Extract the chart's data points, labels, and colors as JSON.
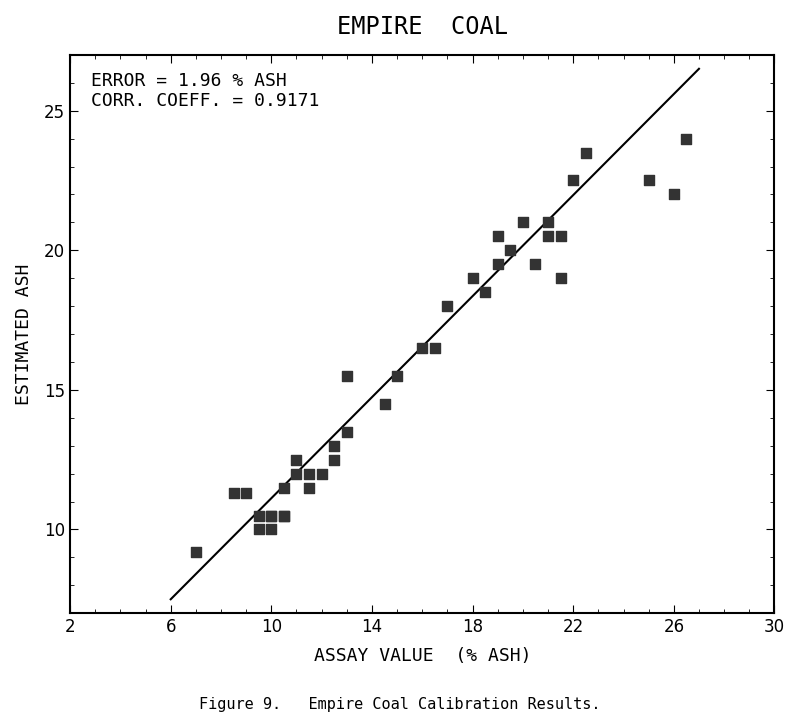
{
  "title": "EMPIRE  COAL",
  "xlabel": "ASSAY VALUE  (% ASH)",
  "ylabel": "ESTIMATED ASH",
  "caption": "Figure 9.   Empire Coal Calibration Results.",
  "annotation_line1": "ERROR = 1.96 % ASH",
  "annotation_line2": "CORR. COEFF. = 0.9171",
  "xlim": [
    2,
    30
  ],
  "ylim": [
    7,
    27
  ],
  "xticks": [
    2,
    6,
    10,
    14,
    18,
    22,
    26,
    30
  ],
  "yticks": [
    10,
    15,
    20,
    25
  ],
  "line_x": [
    6,
    27
  ],
  "line_y": [
    7.5,
    26.5
  ],
  "scatter_x": [
    7.0,
    8.5,
    9.0,
    9.5,
    9.5,
    10.0,
    10.0,
    10.0,
    10.5,
    10.5,
    10.5,
    11.0,
    11.0,
    11.5,
    11.5,
    12.0,
    12.5,
    12.5,
    13.0,
    13.0,
    14.5,
    15.0,
    16.0,
    16.5,
    17.0,
    18.0,
    18.5,
    19.0,
    19.0,
    19.5,
    20.0,
    20.5,
    21.0,
    21.0,
    21.5,
    21.5,
    22.0,
    22.5,
    25.0,
    26.0,
    26.5
  ],
  "scatter_y": [
    9.2,
    11.3,
    11.3,
    10.5,
    10.0,
    10.5,
    10.5,
    10.0,
    10.5,
    10.5,
    11.5,
    12.0,
    12.5,
    11.5,
    12.0,
    12.0,
    12.5,
    13.0,
    13.5,
    15.5,
    14.5,
    15.5,
    16.5,
    16.5,
    18.0,
    19.0,
    18.5,
    19.5,
    20.5,
    20.0,
    21.0,
    19.5,
    21.0,
    20.5,
    19.0,
    20.5,
    22.5,
    23.5,
    22.5,
    22.0,
    24.0
  ],
  "marker_color": "#333333",
  "marker_size": 60,
  "line_color": "#000000",
  "bg_color": "#ffffff",
  "title_fontsize": 17,
  "label_fontsize": 13,
  "tick_fontsize": 12,
  "annotation_fontsize": 13,
  "caption_fontsize": 11
}
